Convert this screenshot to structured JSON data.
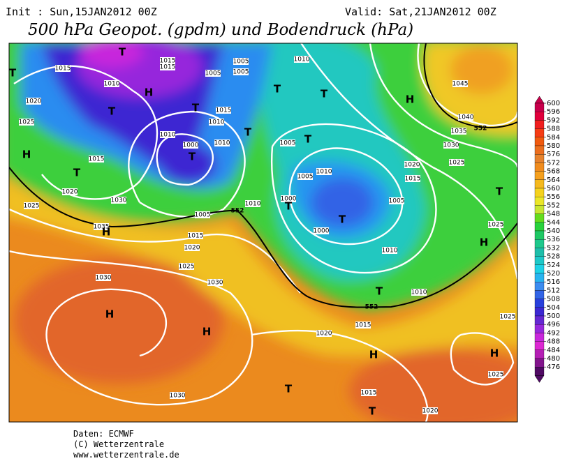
{
  "header": {
    "init": "Init : Sun,15JAN2012 00Z",
    "valid": "Valid: Sat,21JAN2012 00Z",
    "title": "500 hPa Geopot. (gpdm) und Bodendruck (hPa)"
  },
  "map": {
    "labels": [
      "T",
      "T",
      "1015",
      "1010",
      "H",
      "1015",
      "1015",
      "1005",
      "1005",
      "1005",
      "1020",
      "T",
      "T",
      "1015",
      "1010",
      "T",
      "1025",
      "1010",
      "1010",
      "1000",
      "T",
      "H",
      "1015",
      "T",
      "1020",
      "1025",
      "1030",
      "1035",
      "H",
      "1005",
      "1010",
      "1015",
      "1020",
      "1025",
      "1030",
      "1030",
      "H",
      "H",
      "1030",
      "1010",
      "T",
      "T",
      "H",
      "1045",
      "1040",
      "1035",
      "T",
      "1030",
      "1005",
      "1010",
      "1005",
      "1020",
      "1025",
      "1015",
      "1000",
      "T",
      "T",
      "1000",
      "1005",
      "T",
      "1025",
      "H",
      "1010",
      "T",
      "1010",
      "1015",
      "1020",
      "1025",
      "H",
      "H",
      "1025",
      "T",
      "T",
      "1015",
      "1020"
    ],
    "contour_labels": [
      "552",
      "552",
      "552"
    ]
  },
  "colorbar": {
    "ticks": [
      600,
      596,
      592,
      588,
      584,
      580,
      576,
      572,
      568,
      564,
      560,
      556,
      552,
      548,
      544,
      540,
      536,
      532,
      528,
      524,
      520,
      516,
      512,
      508,
      504,
      500,
      496,
      492,
      488,
      484,
      480,
      476
    ],
    "colors": [
      "#c8004b",
      "#e0003c",
      "#f01e1e",
      "#f53c14",
      "#f05a0f",
      "#eb6e1e",
      "#e6822d",
      "#f08c1e",
      "#f5a01e",
      "#f5b91e",
      "#f5d21e",
      "#ebe628",
      "#c8e632",
      "#64dc1e",
      "#28d23c",
      "#1ec864",
      "#1ec88c",
      "#1ebeaa",
      "#1ec8c8",
      "#1ed2e6",
      "#28b4f0",
      "#3c8cf0",
      "#3264e6",
      "#2840dc",
      "#3c28d2",
      "#6428d2",
      "#9628dc",
      "#c828dc",
      "#dc28d2",
      "#b41eb4",
      "#82148c",
      "#500a64"
    ]
  },
  "footer": {
    "source": "Daten: ECMWF",
    "copyright": "(C) Wetterzentrale",
    "url": "www.wetterzentrale.de"
  }
}
